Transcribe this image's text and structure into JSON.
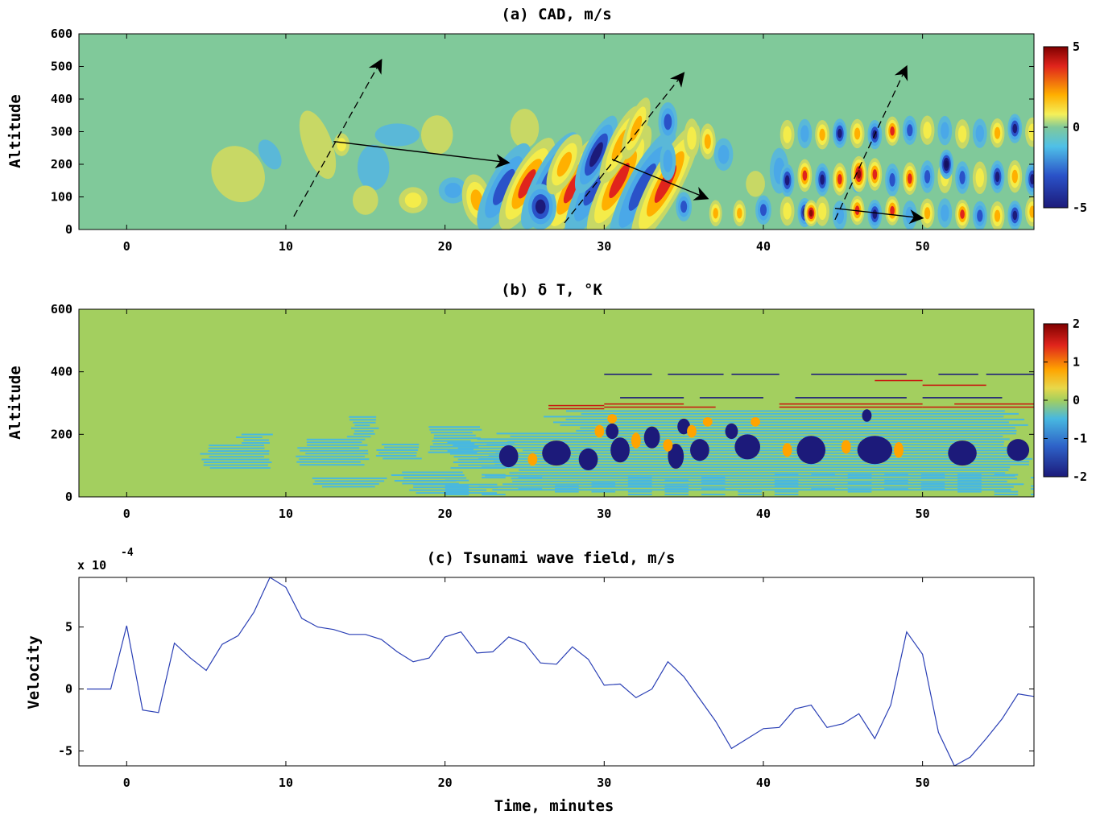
{
  "chart_data": [
    {
      "type": "heatmap",
      "title": "(a) CAD, m/s",
      "ylabel": "Altitude",
      "xlabel": "",
      "xlim": [
        -3,
        57
      ],
      "ylim": [
        0,
        600
      ],
      "xticks": [
        0,
        10,
        20,
        30,
        40,
        50
      ],
      "yticks": [
        0,
        100,
        200,
        300,
        400,
        500,
        600
      ],
      "colorbar": {
        "range": [
          -5,
          5
        ],
        "ticks": [
          5,
          0,
          -5
        ],
        "colormap": "jet"
      },
      "background_color": "#80c99a",
      "arrows_dashed": [
        {
          "from": [
            10.5,
            40
          ],
          "to": [
            16,
            520
          ]
        },
        {
          "from": [
            27.5,
            20
          ],
          "to": [
            35,
            480
          ]
        },
        {
          "from": [
            44.5,
            30
          ],
          "to": [
            49,
            500
          ]
        }
      ],
      "arrows_solid": [
        {
          "from": [
            13,
            270
          ],
          "to": [
            24,
            205
          ]
        },
        {
          "from": [
            30.5,
            215
          ],
          "to": [
            36.5,
            95
          ]
        },
        {
          "from": [
            44.5,
            65
          ],
          "to": [
            50,
            35
          ]
        }
      ]
    },
    {
      "type": "heatmap",
      "title": "(b) δ T, °K",
      "ylabel": "Altitude",
      "xlabel": "",
      "xlim": [
        -3,
        57
      ],
      "ylim": [
        0,
        600
      ],
      "xticks": [
        0,
        10,
        20,
        30,
        40,
        50
      ],
      "yticks": [
        0,
        200,
        400,
        600
      ],
      "colorbar": {
        "range": [
          -2,
          2
        ],
        "ticks": [
          2,
          1,
          0,
          -1,
          -2
        ],
        "colormap": "jet"
      },
      "background_color": "#a3cf5f"
    },
    {
      "type": "line",
      "title": "(c) Tsunami wave field, m/s",
      "ylabel": "Velocity",
      "xlabel": "Time, minutes",
      "scale_label": "x 10",
      "scale_exponent": "-4",
      "xlim": [
        -3,
        57
      ],
      "ylim": [
        -6.2,
        9
      ],
      "xticks": [
        0,
        10,
        20,
        30,
        40,
        50
      ],
      "yticks": [
        -5,
        0,
        5
      ],
      "line_color": "#2a3fb5",
      "series": [
        {
          "x": [
            -2.5,
            -1,
            0,
            1,
            2,
            3,
            4,
            5,
            6,
            7,
            8,
            9,
            10,
            11,
            12,
            13,
            14,
            15,
            16,
            17,
            18,
            19,
            20,
            21,
            22,
            23,
            24,
            25,
            26,
            27,
            28,
            29,
            30,
            31,
            32,
            33,
            34,
            35,
            36,
            37,
            38,
            39,
            40,
            41,
            42,
            43,
            44,
            45,
            46,
            47,
            48,
            49,
            50,
            51,
            52,
            53,
            54,
            55,
            56,
            57
          ],
          "y": [
            0,
            0,
            5.1,
            -1.7,
            -1.9,
            3.7,
            2.5,
            1.5,
            3.6,
            4.3,
            6.2,
            9,
            8.2,
            5.7,
            5.0,
            4.8,
            4.4,
            4.4,
            4.0,
            3.0,
            2.2,
            2.5,
            4.2,
            4.6,
            2.9,
            3.0,
            4.2,
            3.7,
            2.1,
            2.0,
            3.4,
            2.4,
            0.3,
            0.4,
            -0.7,
            0.0,
            2.2,
            1.0,
            -0.8,
            -2.6,
            -4.8,
            -4.0,
            -3.2,
            -3.1,
            -1.6,
            -1.3,
            -3.1,
            -2.8,
            -2.0,
            -4.0,
            -1.3,
            4.6,
            2.8,
            -3.5,
            -6.2,
            -5.5,
            -4.0,
            -2.4,
            -0.4,
            -0.6
          ]
        }
      ]
    }
  ]
}
